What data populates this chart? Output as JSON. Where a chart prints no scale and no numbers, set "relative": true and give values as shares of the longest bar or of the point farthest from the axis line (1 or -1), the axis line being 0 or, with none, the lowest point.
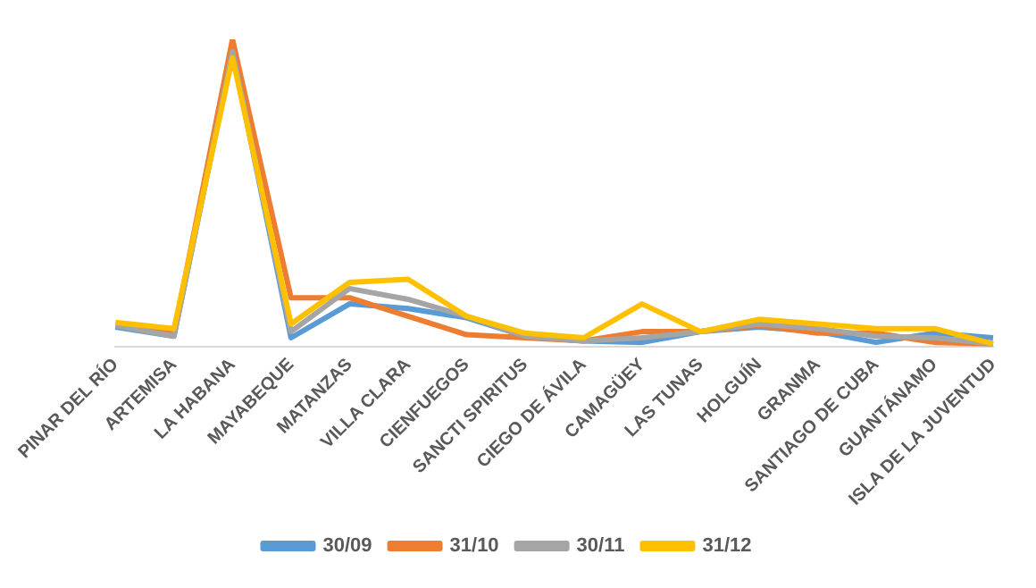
{
  "chart_data": {
    "type": "line",
    "relative": true,
    "legend": "bottom",
    "grid": false,
    "marker": "none",
    "line_style": "solid",
    "categories": [
      "PINAR DEL RÍO",
      "ARTEMISA",
      "LA HABANA",
      "MAYABEQUE",
      "MATANZAS",
      "VILLA CLARA",
      "CIENFUEGOS",
      "SANCTI SPIRITUS",
      "CIEGO DE ÁVILA",
      "CAMAGÜEY",
      "LAS TUNAS",
      "HOLGUÍN",
      "GRANMA",
      "SANTIAGO DE CUBA",
      "GUANTÁNAMO",
      "ISLA DE LA JUVENTUD"
    ],
    "series": [
      {
        "name": "30/09",
        "color": "#5b9bd5",
        "values": [
          0.065,
          0.035,
          0.96,
          0.03,
          0.14,
          0.125,
          0.095,
          0.035,
          0.02,
          0.015,
          0.05,
          0.065,
          0.05,
          0.015,
          0.045,
          0.03
        ]
      },
      {
        "name": "31/10",
        "color": "#ed7d31",
        "values": [
          0.07,
          0.045,
          1,
          0.16,
          0.16,
          0.1,
          0.04,
          0.03,
          0.02,
          0.05,
          0.05,
          0.07,
          0.045,
          0.045,
          0.015,
          0.01
        ]
      },
      {
        "name": "30/11",
        "color": "#a5a5a5",
        "values": [
          0.07,
          0.035,
          0.96,
          0.05,
          0.19,
          0.155,
          0.1,
          0.035,
          0.02,
          0.03,
          0.05,
          0.075,
          0.06,
          0.035,
          0.03,
          0.01
        ]
      },
      {
        "name": "31/12",
        "color": "#ffc000",
        "values": [
          0.08,
          0.06,
          0.94,
          0.075,
          0.21,
          0.22,
          0.1,
          0.045,
          0.03,
          0.14,
          0.05,
          0.09,
          0.075,
          0.06,
          0.06,
          0.01
        ]
      }
    ]
  }
}
